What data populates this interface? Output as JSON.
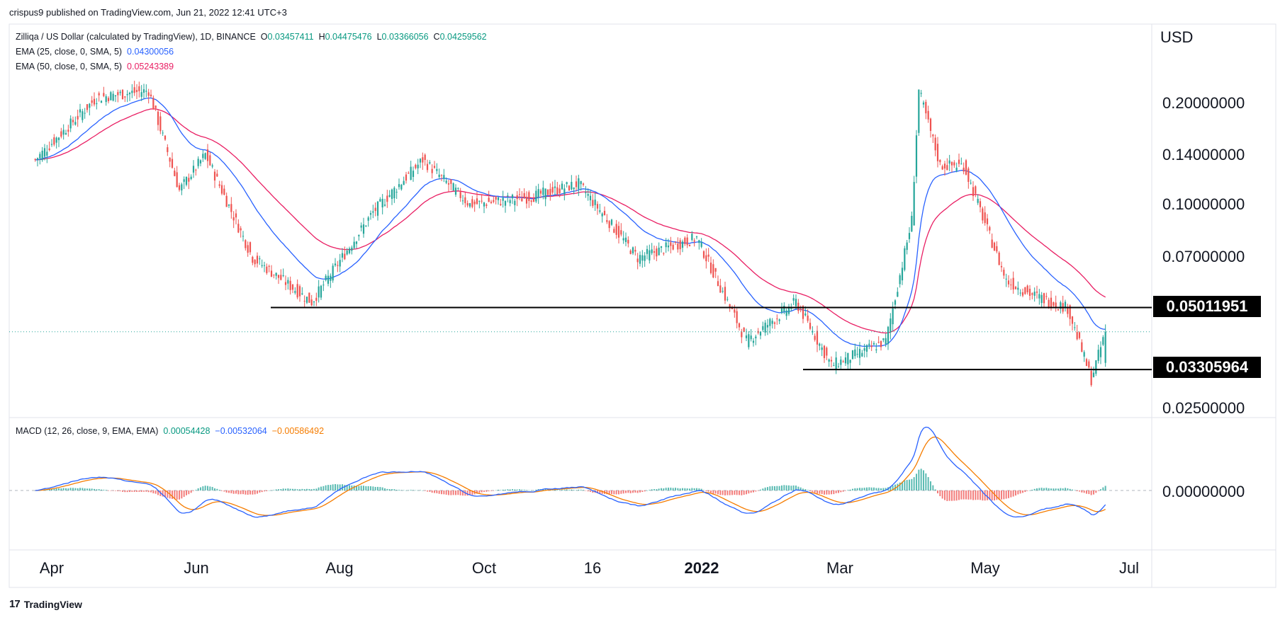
{
  "attribution": "crispus9 published on TradingView.com, Jun 21, 2022 12:41 UTC+3",
  "footer": {
    "brand": "TradingView"
  },
  "price_axis_currency": "USD",
  "legend": {
    "symbol": "Zilliqa / US Dollar (calculated by TradingView), 1D, BINANCE",
    "open_label": "O",
    "open": "0.03457411",
    "high_label": "H",
    "high": "0.04475476",
    "low_label": "L",
    "low": "0.03366056",
    "close_label": "C",
    "close": "0.04259562",
    "ema25_label": "EMA (25, close, 0, SMA, 5)",
    "ema25_value": "0.04300056",
    "ema50_label": "EMA (50, close, 0, SMA, 5)",
    "ema50_value": "0.05243389",
    "macd_label": "MACD (12, 26, close, 9, EMA, EMA)",
    "macd_hist": "0.00054428",
    "macd_line": "−0.00532064",
    "macd_signal": "−0.00586492"
  },
  "levels": {
    "resistance": "0.05011951",
    "support": "0.03305964"
  },
  "colors": {
    "up": "#26a69a",
    "down": "#ef5350",
    "ema25": "#2962ff",
    "ema50": "#e91e63",
    "macd": "#2962ff",
    "signal": "#f57c00"
  },
  "chart_data": {
    "type": "candlestick",
    "scale": "log",
    "price_ticks": [
      "0.20000000",
      "0.14000000",
      "0.10000000",
      "0.07000000",
      "0.02500000"
    ],
    "macd_ticks": [
      "0.00000000"
    ],
    "x_tick_labels": [
      "Apr",
      "Jun",
      "Aug",
      "Oct",
      "16",
      "2022",
      "Mar",
      "May",
      "Jul"
    ],
    "price_keypoints": [
      {
        "date": "2021-03-25",
        "price": 0.135
      },
      {
        "date": "2021-04-20",
        "price": 0.205
      },
      {
        "date": "2021-05-12",
        "price": 0.215
      },
      {
        "date": "2021-05-25",
        "price": 0.11
      },
      {
        "date": "2021-06-05",
        "price": 0.14
      },
      {
        "date": "2021-06-25",
        "price": 0.07
      },
      {
        "date": "2021-07-20",
        "price": 0.052
      },
      {
        "date": "2021-08-15",
        "price": 0.095
      },
      {
        "date": "2021-09-05",
        "price": 0.135
      },
      {
        "date": "2021-09-25",
        "price": 0.1
      },
      {
        "date": "2021-10-20",
        "price": 0.105
      },
      {
        "date": "2021-11-10",
        "price": 0.115
      },
      {
        "date": "2021-12-05",
        "price": 0.07
      },
      {
        "date": "2021-12-30",
        "price": 0.08
      },
      {
        "date": "2022-01-20",
        "price": 0.04
      },
      {
        "date": "2022-02-10",
        "price": 0.052
      },
      {
        "date": "2022-02-25",
        "price": 0.034
      },
      {
        "date": "2022-03-20",
        "price": 0.04
      },
      {
        "date": "2022-03-31",
        "price": 0.09
      },
      {
        "date": "2022-04-03",
        "price": 0.215
      },
      {
        "date": "2022-04-12",
        "price": 0.13
      },
      {
        "date": "2022-04-22",
        "price": 0.13
      },
      {
        "date": "2022-05-10",
        "price": 0.06
      },
      {
        "date": "2022-05-20",
        "price": 0.055
      },
      {
        "date": "2022-06-05",
        "price": 0.05
      },
      {
        "date": "2022-06-15",
        "price": 0.031
      },
      {
        "date": "2022-06-21",
        "price": 0.0426
      }
    ]
  }
}
